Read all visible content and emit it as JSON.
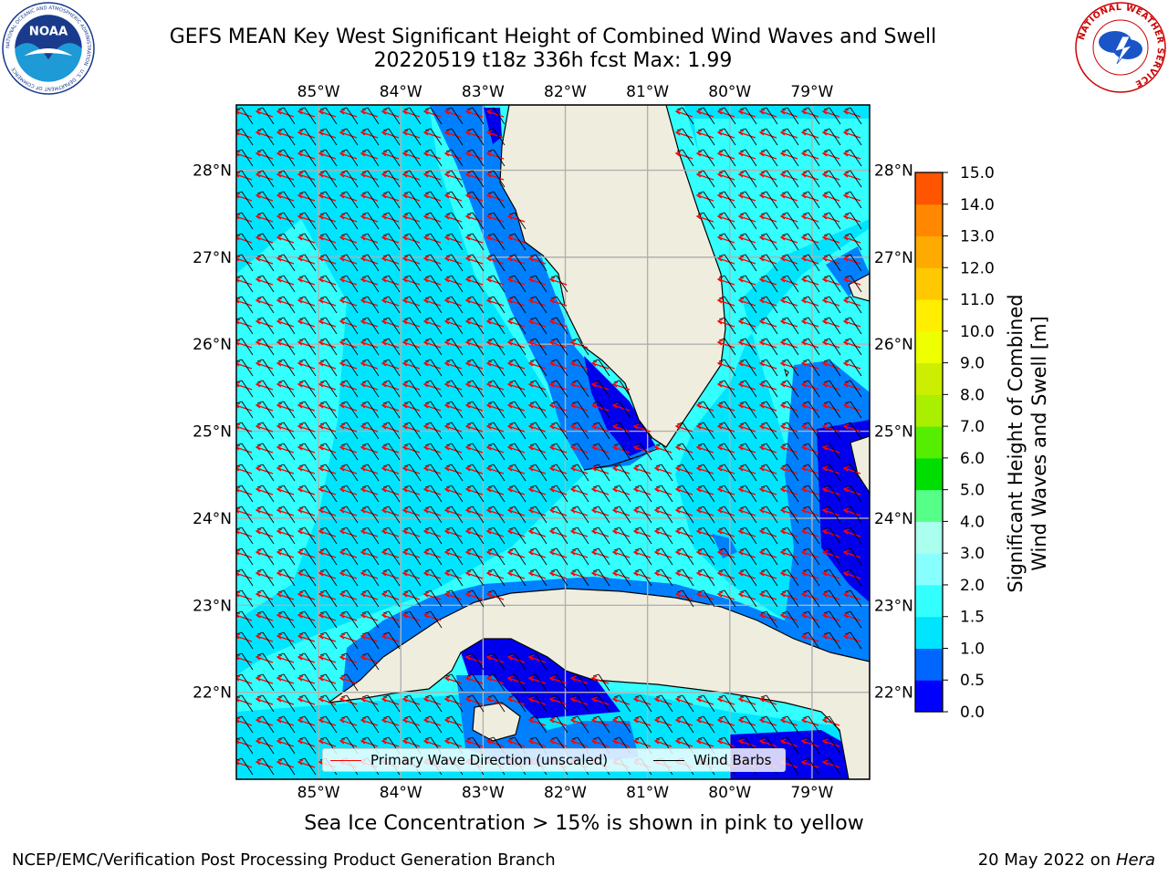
{
  "header": {
    "title_line1": "GEFS MEAN Key West Significant Height of Combined Wind Waves and Swell",
    "title_line2": "20220519 t18z 336h fcst   Max: 1.99"
  },
  "logos": {
    "noaa_text": "NOAA",
    "noaa_ring": "NATIONAL OCEANIC AND ATMOSPHERIC ADMINISTRATION · U.S. DEPARTMENT OF COMMERCE",
    "nws_ring": "NATIONAL WEATHER SERVICE"
  },
  "map": {
    "lon_labels": [
      "85°W",
      "84°W",
      "83°W",
      "82°W",
      "81°W",
      "80°W",
      "79°W"
    ],
    "lat_labels": [
      "28°N",
      "27°N",
      "26°N",
      "25°N",
      "24°N",
      "23°N",
      "22°N"
    ],
    "lon_values": [
      -85,
      -84,
      -83,
      -82,
      -81,
      -80,
      -79
    ],
    "lat_values": [
      28,
      27,
      26,
      25,
      24,
      23,
      22
    ],
    "extent": {
      "lon_min": -86.0,
      "lon_max": -78.3,
      "lat_min": 21.0,
      "lat_max": 28.75
    }
  },
  "colorbar": {
    "label_line1": "Significant Height of Combined",
    "label_line2": "Wind Waves and Swell [m]",
    "ticks": [
      "0.0",
      "0.5",
      "1.0",
      "1.5",
      "2.0",
      "3.0",
      "4.0",
      "5.0",
      "6.0",
      "7.0",
      "8.0",
      "9.0",
      "10.0",
      "11.0",
      "12.0",
      "13.0",
      "14.0",
      "15.0"
    ],
    "colors": [
      "#0000ff",
      "#0066ff",
      "#00e5ff",
      "#33ffff",
      "#88ffff",
      "#aaffee",
      "#55ff88",
      "#00dd00",
      "#55ee00",
      "#aaee00",
      "#ccee00",
      "#eeff00",
      "#ffee00",
      "#ffc800",
      "#ffaa00",
      "#ff8800",
      "#ff5500",
      "#ff2200",
      "#ff0000"
    ]
  },
  "legend": {
    "wave_label": "Primary Wave Direction (unscaled)",
    "wind_label": "Wind Barbs",
    "wave_color": "#ff0000",
    "wind_color": "#000000"
  },
  "colors": {
    "ocean_main": "#33ffff",
    "ocean_mid": "#00e5ff",
    "wave_low": "#0080ff",
    "wave_lowest": "#0000ee",
    "land": "#efedde",
    "grid": "#b0b0b0"
  },
  "note": "Sea Ice Concentration > 15% is shown in pink to yellow",
  "footer": {
    "left": "NCEP/EMC/Verification Post Processing Product Generation Branch",
    "right_date": "20 May 2022 on ",
    "right_host": "Hera"
  }
}
